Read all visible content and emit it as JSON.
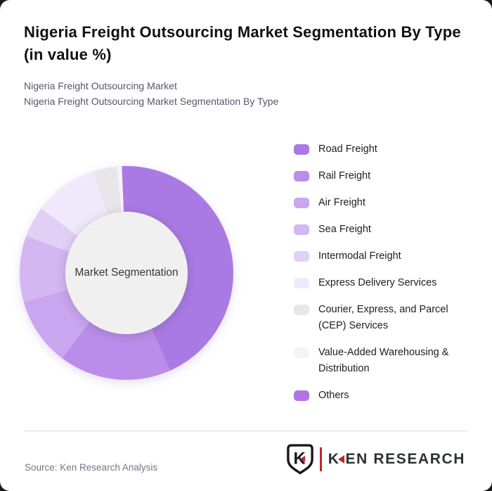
{
  "page": {
    "background": "#1b1b1d",
    "card_background": "#ffffff"
  },
  "header": {
    "title": "Nigeria Freight Outsourcing Market Segmentation By Type (in value %)",
    "subtitle_line1": "Nigeria Freight Outsourcing Market",
    "subtitle_line2": "Nigeria Freight Outsourcing Market Segmentation By Type"
  },
  "chart_data": {
    "type": "pie",
    "subtype": "donut",
    "center_label": "Market Segmentation",
    "start_angle_deg": 0,
    "direction": "clockwise",
    "legend_position": "right",
    "outer_radius_px": 152,
    "inner_radius_px": 87,
    "series": [
      {
        "label": "Road Freight",
        "value": 43.3,
        "color": "#a97ae3"
      },
      {
        "label": "Rail Freight",
        "value": 17.0,
        "color": "#ba8dea"
      },
      {
        "label": "Air Freight",
        "value": 10.3,
        "color": "#c9a6ef"
      },
      {
        "label": "Sea Freight",
        "value": 10.0,
        "color": "#d4b6f2"
      },
      {
        "label": "Intermodal Freight",
        "value": 4.7,
        "color": "#e2cff6"
      },
      {
        "label": "Express Delivery Services",
        "value": 9.7,
        "color": "#f0e9fb"
      },
      {
        "label": "Courier, Express, and Parcel (CEP) Services",
        "value": 3.6,
        "color": "#e8e6e9"
      },
      {
        "label": "Value-Added Warehousing & Distribution",
        "value": 0.7,
        "color": "#f4f3f5"
      },
      {
        "label": "Others",
        "value": 0.7,
        "color": "#b076e4"
      }
    ]
  },
  "footer": {
    "source": "Source: Ken Research Analysis",
    "logo": {
      "emblem": "ken-research-shield",
      "emblem_letter": "K",
      "brand_k": "K",
      "brand_rest": "EN RESEARCH",
      "red": "#c0272d",
      "dark": "#2d3036"
    }
  }
}
